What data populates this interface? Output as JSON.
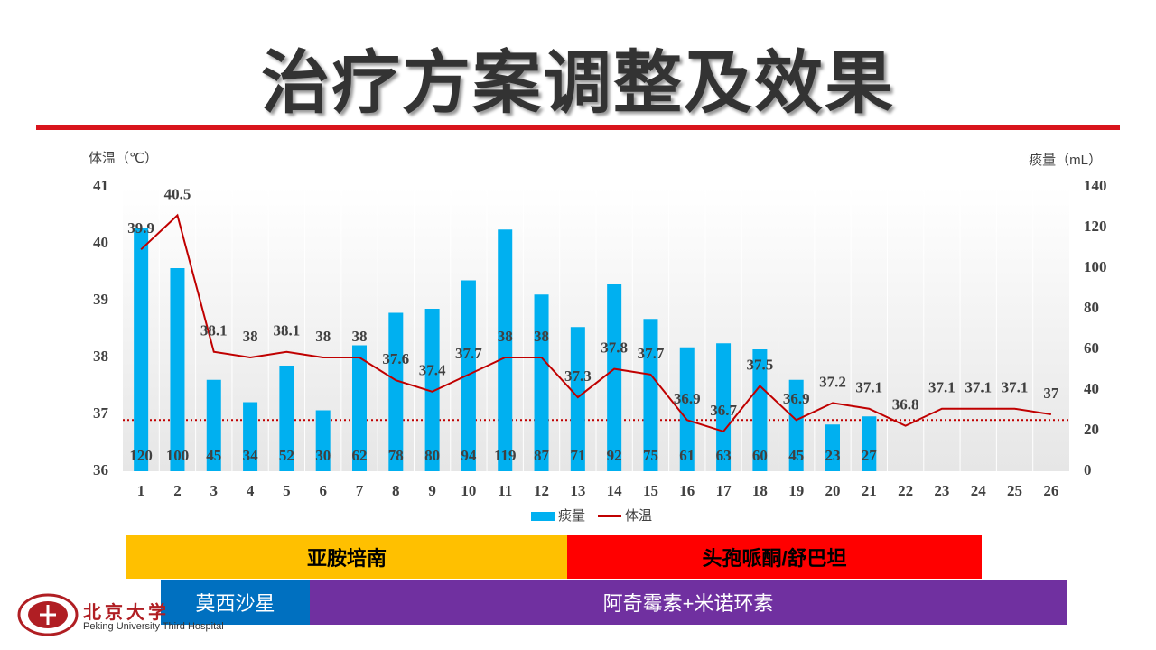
{
  "title": "治疗方案调整及效果",
  "chart_data": {
    "type": "bar_line",
    "y_label": "体温（℃）",
    "y2_label": "痰量（mL）",
    "categories": [
      "1",
      "2",
      "3",
      "4",
      "5",
      "6",
      "7",
      "8",
      "9",
      "10",
      "11",
      "12",
      "13",
      "14",
      "15",
      "16",
      "17",
      "18",
      "19",
      "20",
      "21",
      "22",
      "23",
      "24",
      "25",
      "26"
    ],
    "series": [
      {
        "name": "痰量",
        "type": "bar",
        "axis": "y2",
        "color": "#00B0F0",
        "values": [
          120,
          100,
          45,
          34,
          52,
          30,
          62,
          78,
          80,
          94,
          119,
          87,
          71,
          92,
          75,
          61,
          63,
          60,
          45,
          23,
          27,
          null,
          null,
          null,
          null,
          null
        ]
      },
      {
        "name": "体温",
        "type": "line",
        "axis": "y",
        "color": "#C00000",
        "values": [
          39.9,
          40.5,
          38.1,
          38,
          38.1,
          38,
          38,
          37.6,
          37.4,
          37.7,
          38,
          38,
          37.3,
          37.8,
          37.7,
          36.9,
          36.7,
          37.5,
          36.9,
          37.2,
          37.1,
          36.8,
          37.1,
          37.1,
          37.1,
          37
        ]
      }
    ],
    "reference_line": {
      "value": 36.9,
      "axis": "y",
      "color": "#C00000"
    },
    "ylim": [
      36,
      41
    ],
    "yticks": [
      36,
      37,
      38,
      39,
      40,
      41
    ],
    "y2lim": [
      0,
      140
    ],
    "y2ticks": [
      0,
      20,
      40,
      60,
      80,
      100,
      120,
      140
    ],
    "legend": "bottom"
  },
  "regimens": [
    {
      "name": "亚胺培南",
      "color": "#FFC000"
    },
    {
      "name": "头孢哌酮/舒巴坦",
      "color": "#FF0000"
    },
    {
      "name": "莫西沙星",
      "color": "#0070C0"
    },
    {
      "name": "阿奇霉素+米诺环素",
      "color": "#7030A0"
    }
  ],
  "logo": {
    "name": "北京大学",
    "subtitle": "Peking University Third Hospital"
  }
}
